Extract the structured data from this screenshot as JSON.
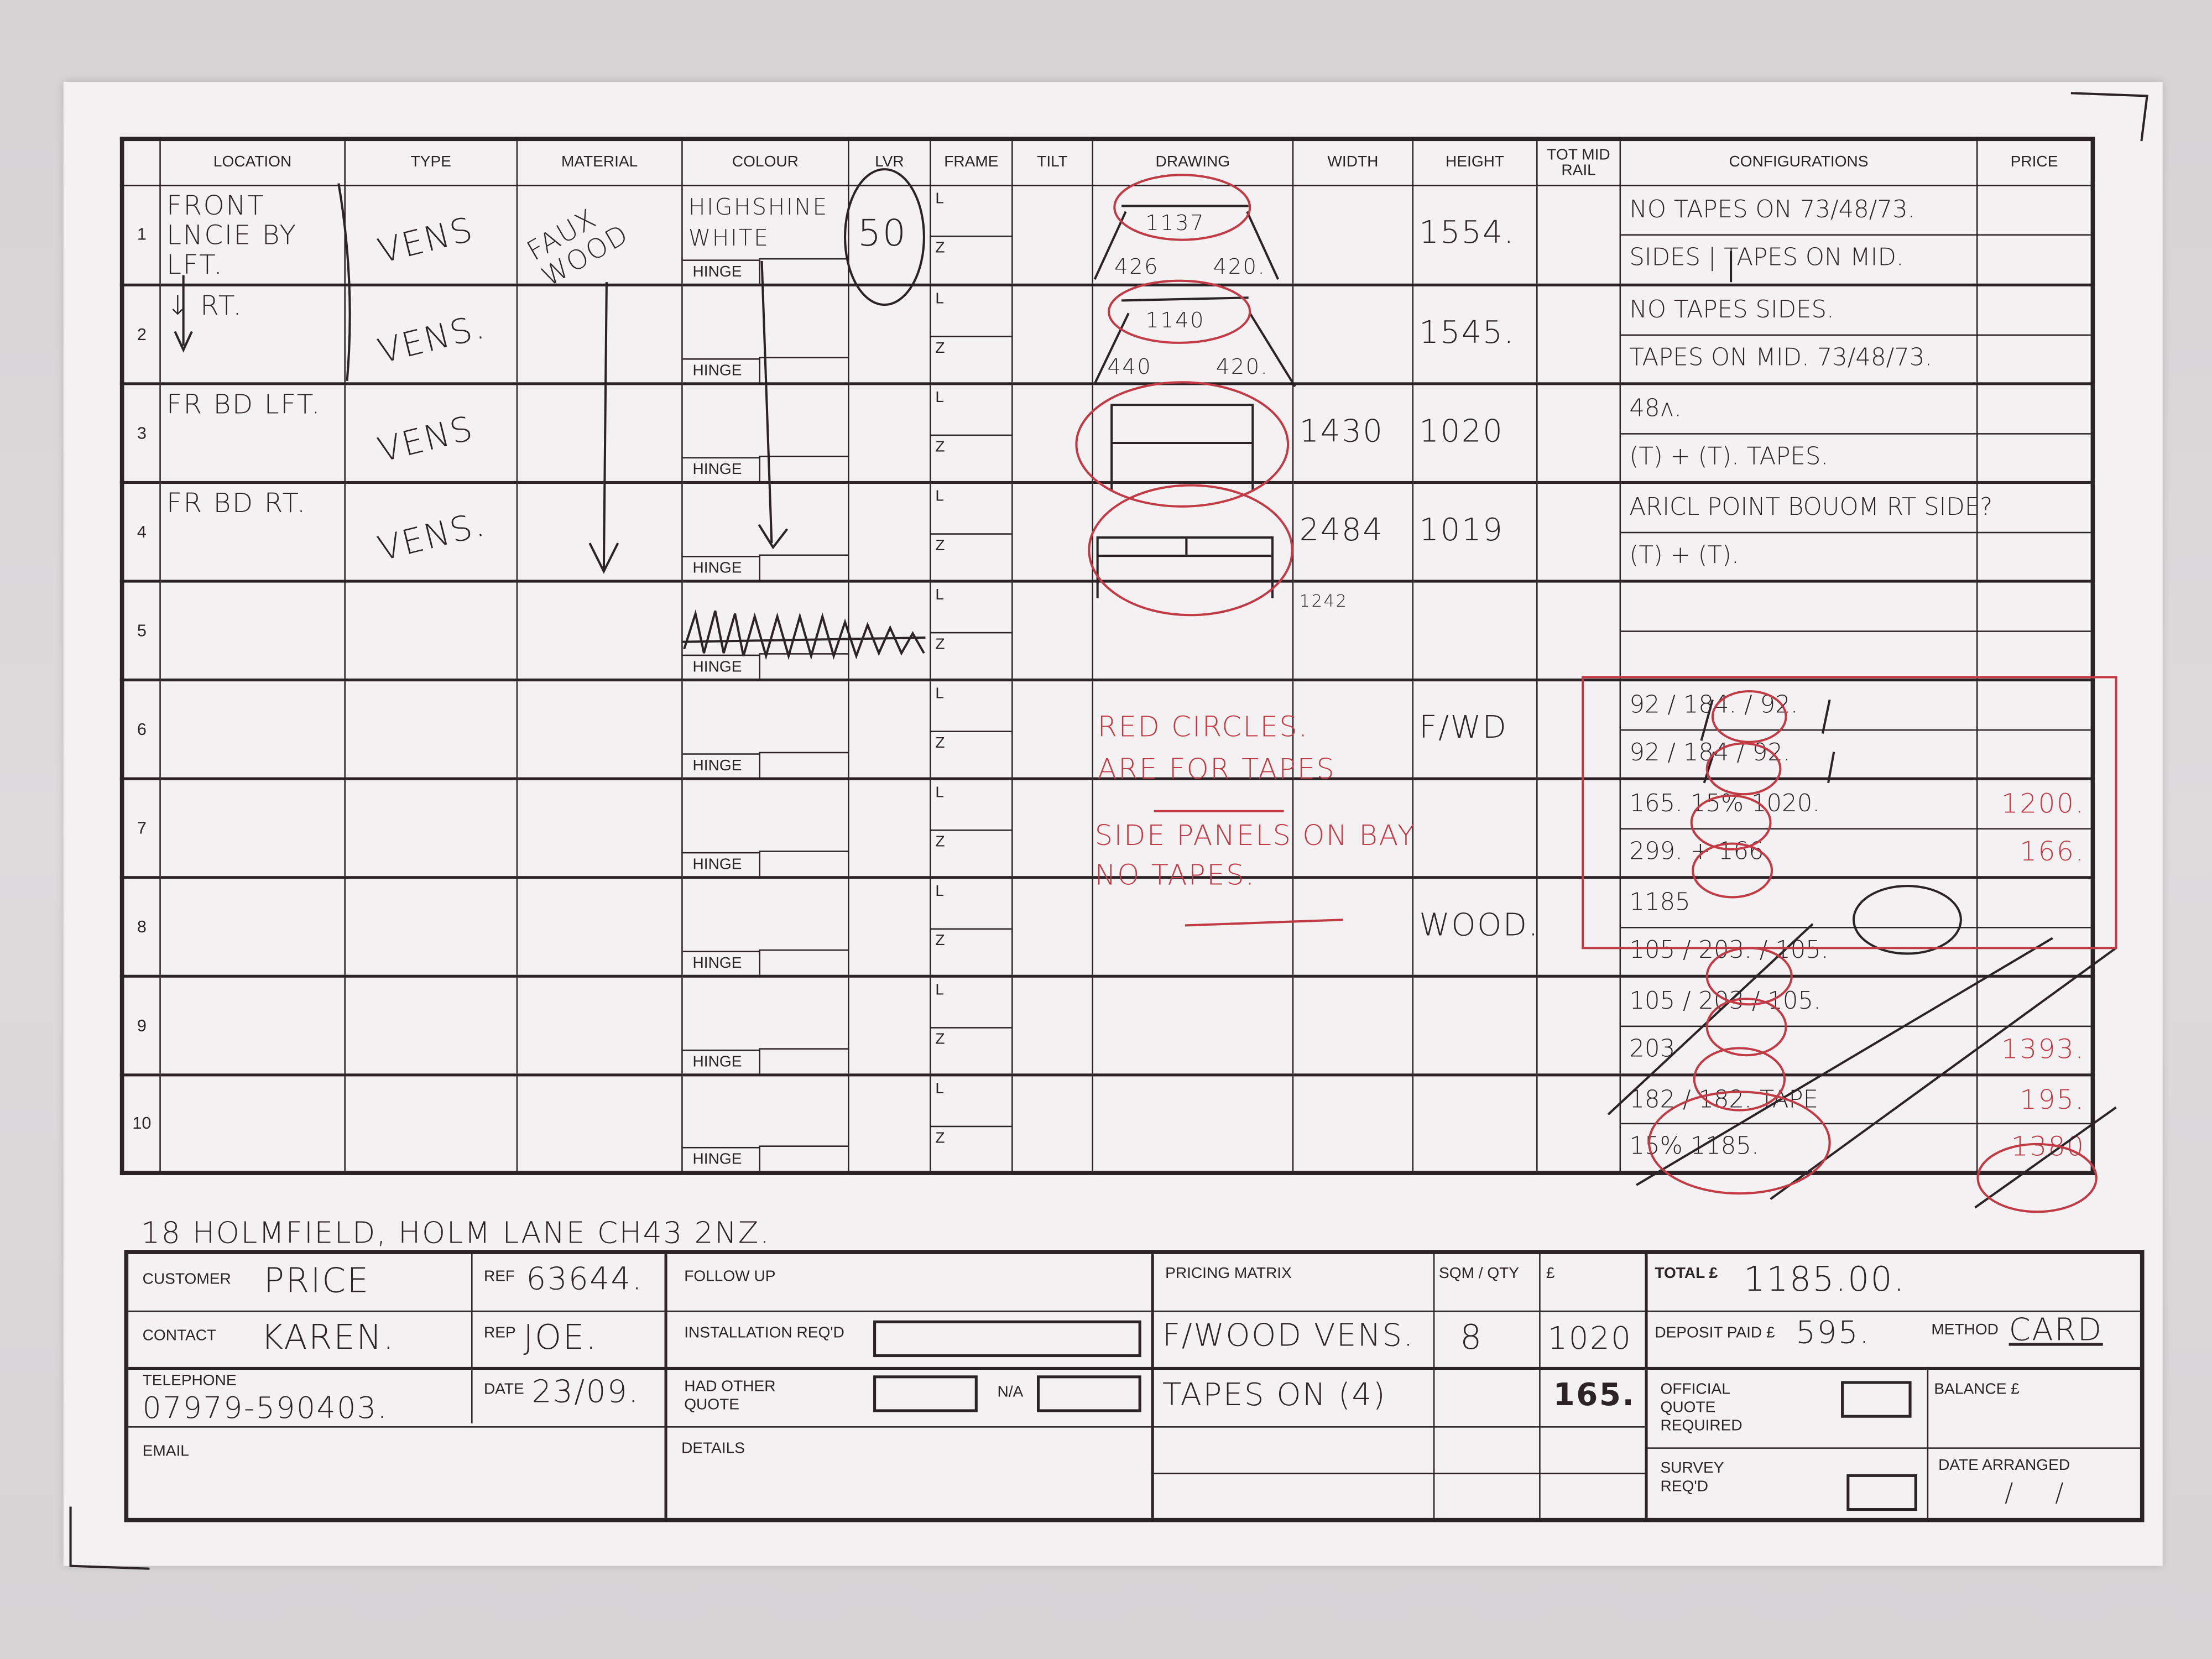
{
  "headers": [
    "",
    "LOCATION",
    "TYPE",
    "MATERIAL",
    "COLOUR",
    "LVR",
    "FRAME",
    "TILT",
    "DRAWING",
    "WIDTH",
    "HEIGHT",
    "TOT MID RAIL",
    "CONFIGURATIONS",
    "PRICE"
  ],
  "frame_labels": [
    "L",
    "Z"
  ],
  "hinge_label": "HINGE",
  "rows": [
    {
      "num": "1",
      "location": "FRONT LNCIE BY LFT.",
      "type": "VENS",
      "material": "FAUX WOOD",
      "colour": "HIGHSHINE WHITE",
      "lvr": "50",
      "width": "",
      "height": "1554.",
      "config": [
        "NO TAPES ON 73/48/73.",
        "SIDES | TAPES ON MID."
      ],
      "price": [
        "",
        ""
      ]
    },
    {
      "num": "2",
      "location": "↓ RT.",
      "type": "VENS.",
      "material": "",
      "colour": "",
      "lvr": "",
      "width": "",
      "height": "1545.",
      "config": [
        "NO TAPES SIDES.",
        "TAPES ON MID. 73/48/73."
      ],
      "price": [
        "",
        ""
      ]
    },
    {
      "num": "3",
      "location": "FR BD LFT.",
      "type": "VENS",
      "material": "",
      "colour": "",
      "lvr": "",
      "width": "1430",
      "height": "1020",
      "config": [
        "48ʌ.",
        "(T) + (T). TAPES."
      ],
      "price": [
        "",
        ""
      ]
    },
    {
      "num": "4",
      "location": "FR BD RT.",
      "type": "VENS.",
      "material": "",
      "colour": "",
      "lvr": "",
      "width": "2484",
      "height": "1019",
      "config": [
        "ARICL POINT BOUOM RT SIDE?",
        "(T) + (T)."
      ],
      "price": [
        "",
        ""
      ]
    },
    {
      "num": "5",
      "location": "",
      "type": "",
      "material": "",
      "colour": "",
      "lvr": "",
      "width": "1242",
      "height": "",
      "config": [
        "",
        ""
      ],
      "price": [
        "",
        ""
      ]
    },
    {
      "num": "6",
      "location": "",
      "type": "",
      "material": "",
      "colour": "",
      "lvr": "",
      "width": "",
      "height": "F/WD",
      "config": [
        "92 / 184. / 92.",
        "92 / 184 / 92."
      ],
      "price": [
        "",
        ""
      ]
    },
    {
      "num": "7",
      "location": "",
      "type": "",
      "material": "",
      "colour": "",
      "lvr": "",
      "width": "",
      "height": "",
      "config": [
        "165. 15% 1020.",
        "299. + 166"
      ],
      "price": [
        "1200.",
        "166."
      ]
    },
    {
      "num": "8",
      "location": "",
      "type": "",
      "material": "",
      "colour": "",
      "lvr": "",
      "width": "",
      "height": "WOOD.",
      "config": [
        "1185",
        "105 / 203. / 105."
      ],
      "price": [
        "",
        ""
      ]
    },
    {
      "num": "9",
      "location": "",
      "type": "",
      "material": "",
      "colour": "",
      "lvr": "",
      "width": "",
      "height": "",
      "config": [
        "105 / 203 / 105.",
        "203"
      ],
      "price": [
        "",
        "1393."
      ]
    },
    {
      "num": "10",
      "location": "",
      "type": "",
      "material": "",
      "colour": "",
      "lvr": "",
      "width": "",
      "height": "",
      "config": [
        "182 / 182. TAPE",
        "15% 1185."
      ],
      "price": [
        "195.",
        "1380"
      ]
    }
  ],
  "drawings": {
    "row1": {
      "top": "1137",
      "left": "426",
      "right": "420."
    },
    "row2": {
      "top": "1140",
      "left": "440",
      "right": "420."
    }
  },
  "notes": {
    "red_circles": "RED CIRCLES. ARE FOR TAPES",
    "side_panels": "SIDE PANELS ON BAY NO TAPES.",
    "address": "18 HOLMFIELD, HOLM LANE  CH43 2NZ."
  },
  "footer": {
    "customer_label": "CUSTOMER",
    "customer": "PRICE",
    "ref_label": "REF",
    "ref": "63644.",
    "contact_label": "CONTACT",
    "contact": "KAREN.",
    "rep_label": "REP",
    "rep": "JOE.",
    "telephone_label": "TELEPHONE",
    "telephone": "07979-590403.",
    "date_label": "DATE",
    "date": "23/09.",
    "email_label": "EMAIL",
    "follow_up_label": "FOLLOW UP",
    "installation_label": "INSTALLATION REQ'D",
    "had_other_quote_label": "HAD OTHER QUOTE",
    "na_label": "N/A",
    "details_label": "DETAILS",
    "pricing_matrix_label": "PRICING MATRIX",
    "sqm_qty_label": "SQM / QTY",
    "pound_label": "£",
    "pricing_rows": [
      {
        "item": "F/WOOD VENS.",
        "qty": "8",
        "amount": "1020"
      },
      {
        "item": "TAPES ON (4)",
        "qty": "",
        "amount": "165."
      }
    ],
    "total_label": "TOTAL £",
    "total": "1185.00.",
    "deposit_label": "DEPOSIT PAID £",
    "deposit": "595.",
    "method_label": "METHOD",
    "method": "CARD",
    "official_quote_label": "OFFICIAL QUOTE REQUIRED",
    "balance_label": "BALANCE £",
    "survey_label": "SURVEY REQ'D",
    "date_arranged_label": "DATE ARRANGED",
    "date_arranged": "/ /"
  },
  "colors": {
    "ink": "#2b2326",
    "red_pen": "#c23a44",
    "paper": "#f3f1f2"
  }
}
